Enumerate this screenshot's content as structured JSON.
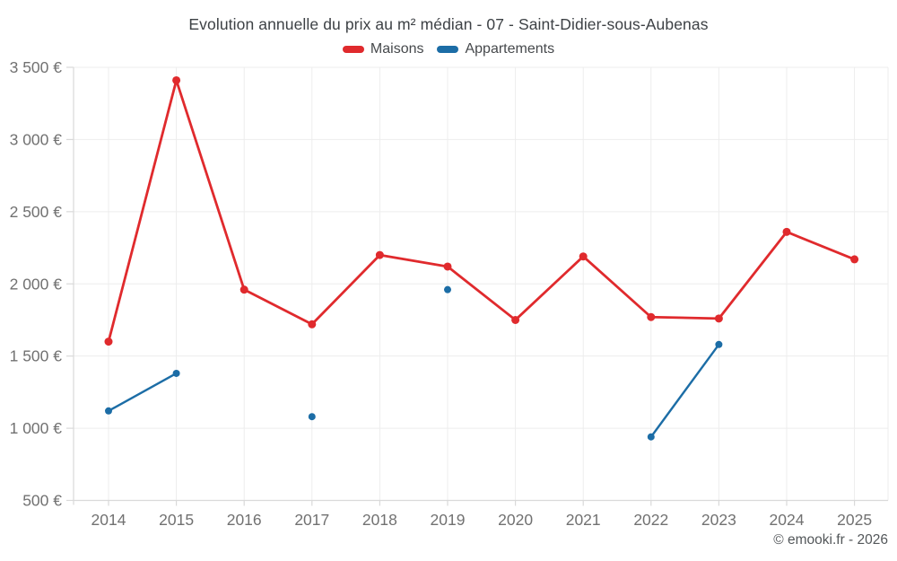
{
  "chart_data": {
    "type": "line",
    "title": "Evolution annuelle du prix au m² médian - 07 - Saint-Didier-sous-Aubenas",
    "footer": "© emooki.fr - 2026",
    "categories": [
      "2014",
      "2015",
      "2016",
      "2017",
      "2018",
      "2019",
      "2020",
      "2021",
      "2022",
      "2023",
      "2024",
      "2025"
    ],
    "ylim": [
      500,
      3500
    ],
    "yticks": [
      {
        "value": 500,
        "label": "500 €"
      },
      {
        "value": 1000,
        "label": "1 000 €"
      },
      {
        "value": 1500,
        "label": "1 500 €"
      },
      {
        "value": 2000,
        "label": "2 000 €"
      },
      {
        "value": 2500,
        "label": "2 500 €"
      },
      {
        "value": 3000,
        "label": "3 000 €"
      },
      {
        "value": 3500,
        "label": "3 500 €"
      }
    ],
    "grid": true,
    "legend_position": "top",
    "series": [
      {
        "name": "Maisons",
        "color": "#e02a2d",
        "values": [
          1600,
          3410,
          1960,
          1720,
          2200,
          2120,
          1750,
          2190,
          1770,
          1760,
          2360,
          2170
        ]
      },
      {
        "name": "Appartements",
        "color": "#1c6da6",
        "values": [
          1120,
          1380,
          null,
          1080,
          null,
          1960,
          null,
          null,
          940,
          1580,
          null,
          null
        ]
      }
    ]
  }
}
